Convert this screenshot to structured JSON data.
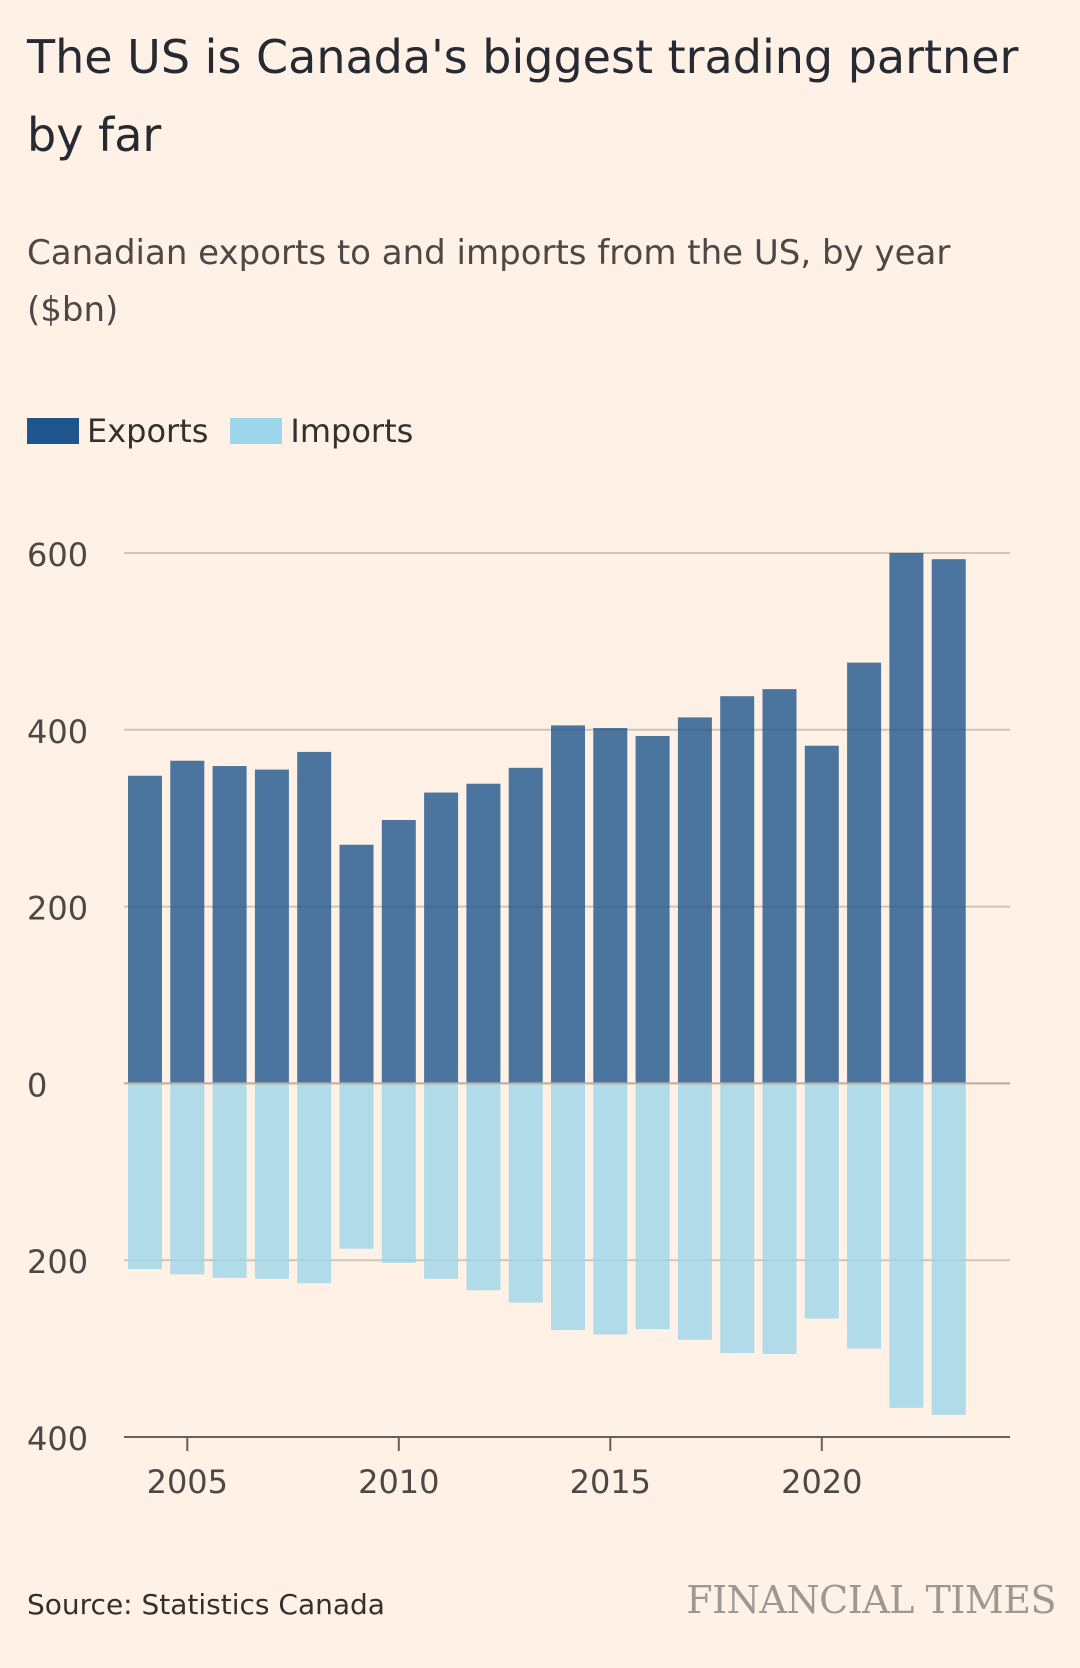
{
  "header": {
    "title": "The US is Canada's biggest trading partner by far",
    "subtitle": "Canadian exports to and imports from the US, by year ($bn)"
  },
  "legend": {
    "items": [
      {
        "label": "Exports",
        "color": "#1E558C"
      },
      {
        "label": "Imports",
        "color": "#9DD6EA"
      }
    ]
  },
  "chart_data": {
    "type": "bar",
    "categories": [
      2004,
      2005,
      2006,
      2007,
      2008,
      2009,
      2010,
      2011,
      2012,
      2013,
      2014,
      2015,
      2016,
      2017,
      2018,
      2019,
      2020,
      2021,
      2022,
      2023
    ],
    "series": [
      {
        "name": "Exports",
        "color": "#1E558C",
        "values": [
          348,
          365,
          359,
          355,
          375,
          270,
          298,
          329,
          339,
          357,
          405,
          402,
          393,
          414,
          438,
          446,
          382,
          476,
          600,
          593
        ]
      },
      {
        "name": "Imports",
        "color": "#9DD6EA",
        "values": [
          -210,
          -216,
          -220,
          -221,
          -226,
          -187,
          -203,
          -221,
          -234,
          -248,
          -279,
          -284,
          -278,
          -290,
          -305,
          -306,
          -266,
          -300,
          -367,
          -375
        ]
      }
    ],
    "ylim": [
      -400,
      600
    ],
    "yticks": [
      {
        "value": 600,
        "label": "600"
      },
      {
        "value": 400,
        "label": "400"
      },
      {
        "value": 200,
        "label": "200"
      },
      {
        "value": 0,
        "label": "0"
      },
      {
        "value": -200,
        "label": "200"
      },
      {
        "value": -400,
        "label": "400"
      }
    ],
    "xticks": [
      2005,
      2010,
      2015,
      2020
    ],
    "grid": true
  },
  "footer": {
    "source": "Source: Statistics Canada",
    "brand": "FINANCIAL TIMES"
  }
}
